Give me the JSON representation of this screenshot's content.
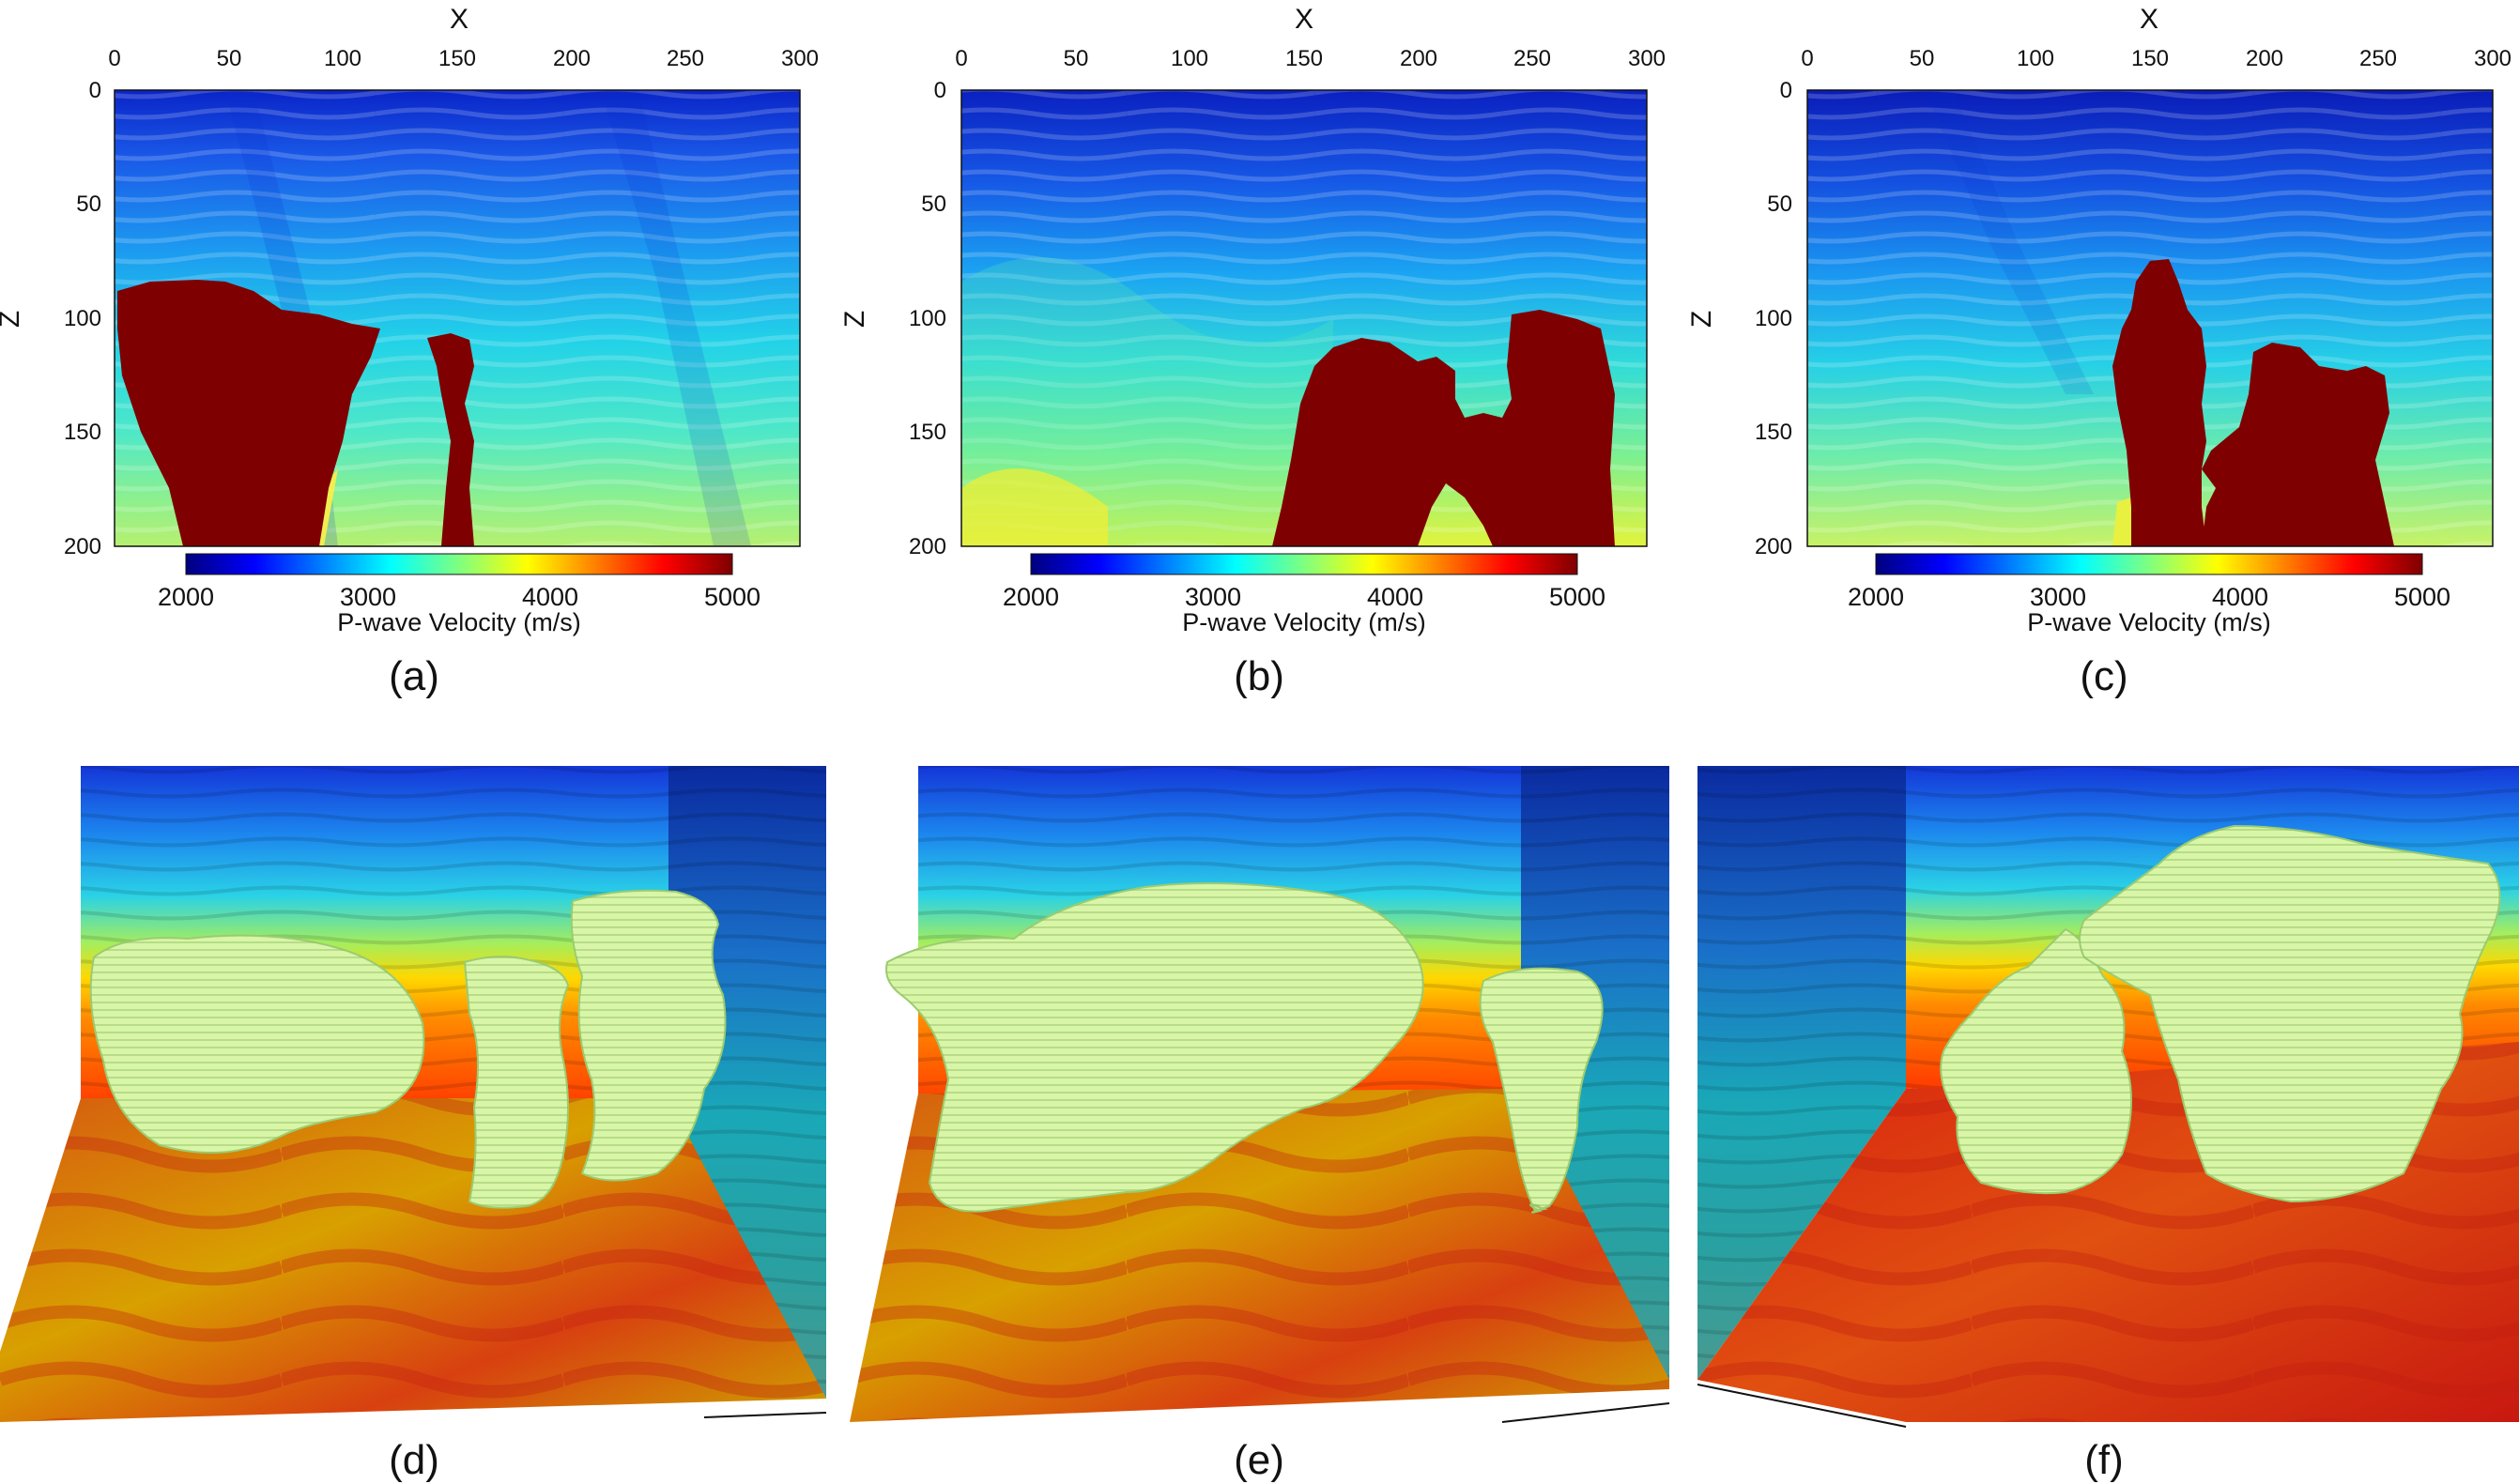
{
  "panels": [
    {
      "id": "a",
      "caption": "(a)",
      "x_label": "X",
      "z_label": "Z",
      "colorbar_label": "P-wave Velocity (m/s)"
    },
    {
      "id": "b",
      "caption": "(b)",
      "x_label": "X",
      "z_label": "Z",
      "colorbar_label": "P-wave Velocity (m/s)"
    },
    {
      "id": "c",
      "caption": "(c)",
      "x_label": "X",
      "z_label": "Z",
      "colorbar_label": "P-wave Velocity (m/s)"
    },
    {
      "id": "d",
      "caption": "(d)"
    },
    {
      "id": "e",
      "caption": "(e)"
    },
    {
      "id": "f",
      "caption": "(f)"
    }
  ],
  "x_ticks": [
    "0",
    "50",
    "100",
    "150",
    "200",
    "250",
    "300"
  ],
  "z_ticks": [
    "0",
    "50",
    "100",
    "150",
    "200"
  ],
  "colorbar_ticks": [
    "2000",
    "3000",
    "4000",
    "5000"
  ],
  "colors": {
    "salt": "#7f0000",
    "salt_body_3d": "#d8f5a8",
    "colormap": [
      "#00007f",
      "#0000ff",
      "#007fff",
      "#00ffff",
      "#7fff7f",
      "#ffff00",
      "#ff7f00",
      "#ff0000",
      "#7f0000"
    ]
  }
}
